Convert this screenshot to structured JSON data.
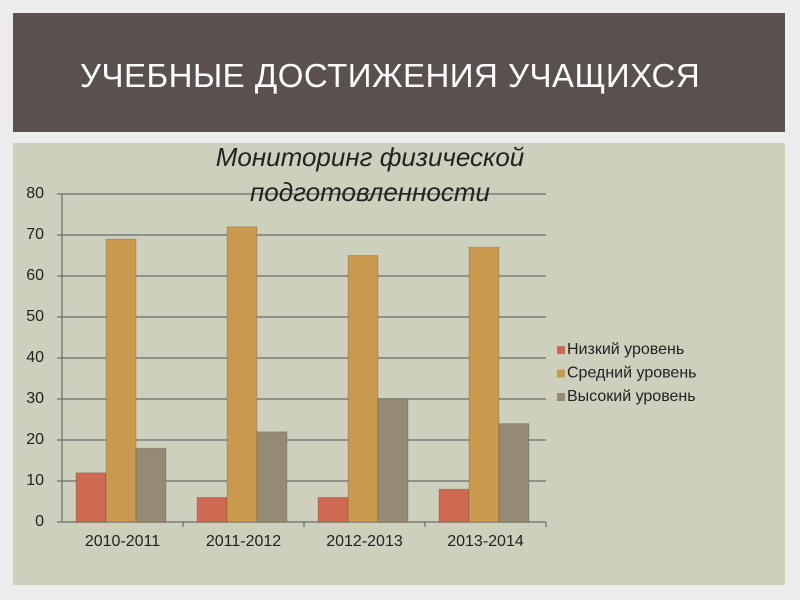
{
  "header": {
    "title": "УЧЕБНЫЕ ДОСТИЖЕНИЯ УЧАЩИХСЯ"
  },
  "chart_data": {
    "type": "bar",
    "title": "Мониторинг физической подготовленности",
    "categories": [
      "2010-2011",
      "2011-2012",
      "2012-2013",
      "2013-2014"
    ],
    "series": [
      {
        "name": "Низкий уровень",
        "color": "#cf6a52",
        "values": [
          12,
          6,
          6,
          8
        ]
      },
      {
        "name": "Средний уровень",
        "color": "#c99a4e",
        "values": [
          69,
          72,
          65,
          67
        ]
      },
      {
        "name": "Высокий уровень",
        "color": "#958b74",
        "values": [
          18,
          22,
          30,
          24
        ]
      }
    ],
    "ylim": [
      0,
      80
    ],
    "yticks": [
      0,
      10,
      20,
      30,
      40,
      50,
      60,
      70,
      80
    ],
    "grid": true,
    "legend": "right"
  }
}
